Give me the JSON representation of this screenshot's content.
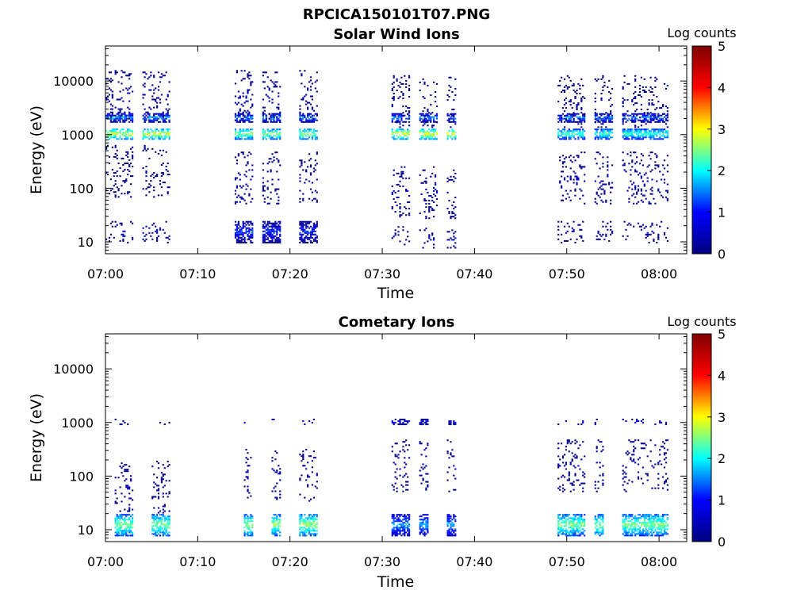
{
  "figure": {
    "title": "RPCICA150101T07.PNG"
  },
  "colormap": {
    "name": "jet",
    "stops": [
      "#00007f",
      "#0000ff",
      "#00ffff",
      "#ffff00",
      "#ff0000",
      "#7f0000"
    ]
  },
  "chart_data": [
    {
      "type": "heatmap",
      "title": "Solar Wind Ions",
      "xlabel": "Time",
      "ylabel": "Energy (eV)",
      "yscale": "log",
      "xlim": [
        "07:00",
        "08:03"
      ],
      "ylim": [
        6,
        45000
      ],
      "xticks": [
        "07:00",
        "07:10",
        "07:20",
        "07:30",
        "07:40",
        "07:50",
        "08:00"
      ],
      "yticks": [
        {
          "value": 10,
          "label": "10"
        },
        {
          "value": 100,
          "label": "100"
        },
        {
          "value": 1000,
          "label": "1000"
        },
        {
          "value": 10000,
          "label": "10000"
        }
      ],
      "colorbar": {
        "label": "Log counts",
        "range": [
          0,
          5
        ],
        "ticks": [
          "0",
          "1",
          "2",
          "3",
          "4",
          "5"
        ]
      },
      "bursts": [
        {
          "t0": "07:00",
          "t1": "07:07",
          "gaps": [
            [
              "07:03",
              "07:04"
            ]
          ],
          "bands": [
            {
              "e": 1000,
              "z": 2.8,
              "w": 1.25
            },
            {
              "e": 2000,
              "z": 1.7,
              "w": 1.2
            },
            {
              "e": 15,
              "z": 0.9,
              "w": 1.6
            },
            {
              "e": 5000,
              "z": 0.4,
              "w": 3
            },
            {
              "e": 200,
              "z": 0.5,
              "w": 3
            }
          ]
        },
        {
          "t0": "07:14",
          "t1": "07:23",
          "gaps": [
            [
              "07:16",
              "07:17"
            ],
            [
              "07:19",
              "07:21"
            ]
          ],
          "bands": [
            {
              "e": 1000,
              "z": 2.6,
              "w": 1.25
            },
            {
              "e": 2000,
              "z": 1.7,
              "w": 1.2
            },
            {
              "e": 15,
              "z": 1.2,
              "w": 1.6
            },
            {
              "e": 5000,
              "z": 0.4,
              "w": 3
            },
            {
              "e": 150,
              "z": 0.5,
              "w": 3
            }
          ]
        },
        {
          "t0": "07:31",
          "t1": "07:38",
          "gaps": [
            [
              "07:33",
              "07:34"
            ],
            [
              "07:36",
              "07:37"
            ]
          ],
          "bands": [
            {
              "e": 1000,
              "z": 2.9,
              "w": 1.25
            },
            {
              "e": 2000,
              "z": 1.6,
              "w": 1.2
            },
            {
              "e": 12,
              "z": 0.5,
              "w": 1.6
            },
            {
              "e": 4000,
              "z": 0.4,
              "w": 3
            },
            {
              "e": 80,
              "z": 0.5,
              "w": 3
            }
          ]
        },
        {
          "t0": "07:49",
          "t1": "08:01",
          "gaps": [
            [
              "07:52",
              "07:53"
            ],
            [
              "07:55",
              "07:56"
            ]
          ],
          "bands": [
            {
              "e": 1000,
              "z": 2.3,
              "w": 1.25
            },
            {
              "e": 2000,
              "z": 1.6,
              "w": 1.2
            },
            {
              "e": 15,
              "z": 0.6,
              "w": 1.6
            },
            {
              "e": 4000,
              "z": 0.4,
              "w": 3
            },
            {
              "e": 150,
              "z": 0.5,
              "w": 3
            }
          ]
        }
      ]
    },
    {
      "type": "heatmap",
      "title": "Cometary Ions",
      "xlabel": "Time",
      "ylabel": "Energy (eV)",
      "yscale": "log",
      "xlim": [
        "07:00",
        "08:03"
      ],
      "ylim": [
        6,
        45000
      ],
      "xticks": [
        "07:00",
        "07:10",
        "07:20",
        "07:30",
        "07:40",
        "07:50",
        "08:00"
      ],
      "yticks": [
        {
          "value": 10,
          "label": "10"
        },
        {
          "value": 100,
          "label": "100"
        },
        {
          "value": 1000,
          "label": "1000"
        },
        {
          "value": 10000,
          "label": "10000"
        }
      ],
      "colorbar": {
        "label": "Log counts",
        "range": [
          0,
          5
        ],
        "ticks": [
          "0",
          "1",
          "2",
          "3",
          "4",
          "5"
        ]
      },
      "bursts": [
        {
          "t0": "07:01",
          "t1": "07:07",
          "gaps": [
            [
              "07:03",
              "07:05"
            ]
          ],
          "bands": [
            {
              "e": 12,
              "z": 2.5,
              "w": 1.6
            },
            {
              "e": 1000,
              "z": 0.9,
              "w": 1.12
            },
            {
              "e": 60,
              "z": 0.4,
              "w": 3
            }
          ]
        },
        {
          "t0": "07:15",
          "t1": "07:23",
          "gaps": [
            [
              "07:16",
              "07:18"
            ],
            [
              "07:19",
              "07:21"
            ]
          ],
          "bands": [
            {
              "e": 12,
              "z": 2.6,
              "w": 1.6
            },
            {
              "e": 1000,
              "z": 1.0,
              "w": 1.12
            },
            {
              "e": 100,
              "z": 0.4,
              "w": 3
            }
          ]
        },
        {
          "t0": "07:31",
          "t1": "07:38",
          "gaps": [
            [
              "07:33",
              "07:34"
            ],
            [
              "07:35",
              "07:37"
            ]
          ],
          "bands": [
            {
              "e": 12,
              "z": 1.7,
              "w": 1.6
            },
            {
              "e": 1000,
              "z": 1.1,
              "w": 1.12
            },
            {
              "e": 150,
              "z": 0.4,
              "w": 3
            }
          ]
        },
        {
          "t0": "07:49",
          "t1": "08:01",
          "gaps": [
            [
              "07:52",
              "07:53"
            ],
            [
              "07:54",
              "07:56"
            ]
          ],
          "bands": [
            {
              "e": 12,
              "z": 2.5,
              "w": 1.6
            },
            {
              "e": 1000,
              "z": 1.0,
              "w": 1.12
            },
            {
              "e": 150,
              "z": 0.4,
              "w": 3
            }
          ]
        }
      ]
    }
  ]
}
